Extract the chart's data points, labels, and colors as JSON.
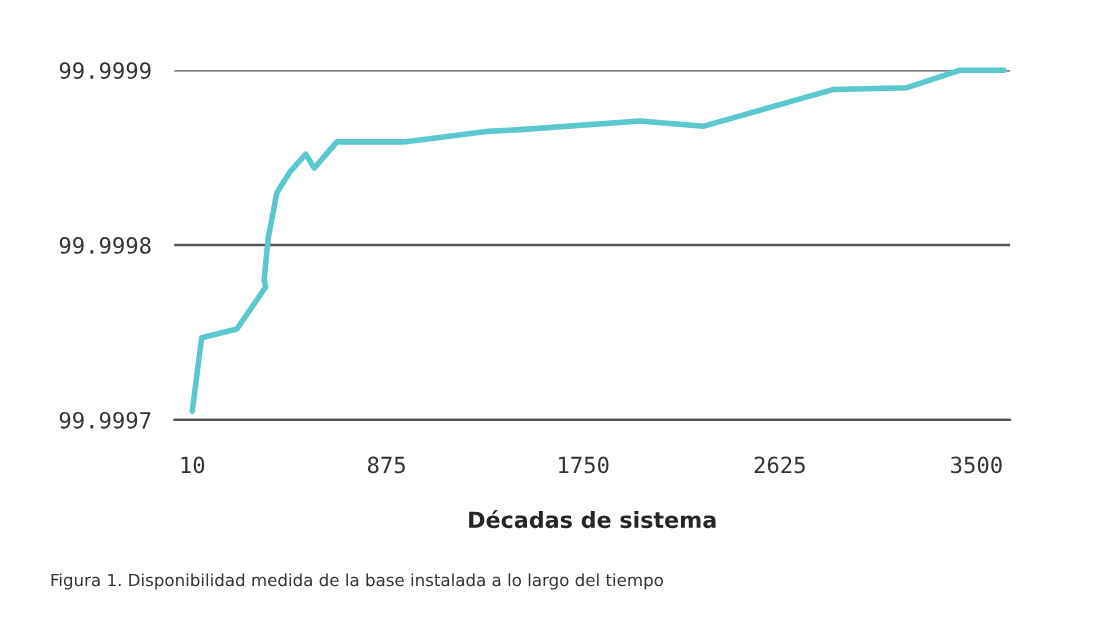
{
  "chart_data": {
    "type": "line",
    "xlabel": "Décadas de sistema",
    "annotations": [
      "Figura 1. Disponibilidad medida de la base instalada a lo largo del tiempo"
    ],
    "series": [
      {
        "color": "#5bc8d0",
        "x": [
          10,
          52,
          209,
          337,
          330,
          348,
          387,
          446,
          515,
          553,
          654,
          951,
          1321,
          1470,
          2004,
          2287,
          2865,
          3191,
          3428,
          3622
        ],
        "values": [
          99.999705,
          99.999747,
          99.999752,
          99.999776,
          99.99978,
          99.999804,
          99.99983,
          99.999842,
          99.999852,
          99.999844,
          99.999859,
          99.999859,
          99.999865,
          99.999866,
          99.999871,
          99.999868,
          99.999889,
          99.99989,
          99.9999,
          99.9999
        ]
      }
    ],
    "xlim": [
      -70,
      3650
    ],
    "xticks": [
      10,
      875,
      1750,
      2625,
      3500
    ],
    "ylim": [
      99.9997,
      99.9999
    ],
    "yticks": [
      99.9997,
      99.9998,
      99.9999
    ],
    "grid": "y",
    "marker": "none",
    "line_style": "solid"
  }
}
